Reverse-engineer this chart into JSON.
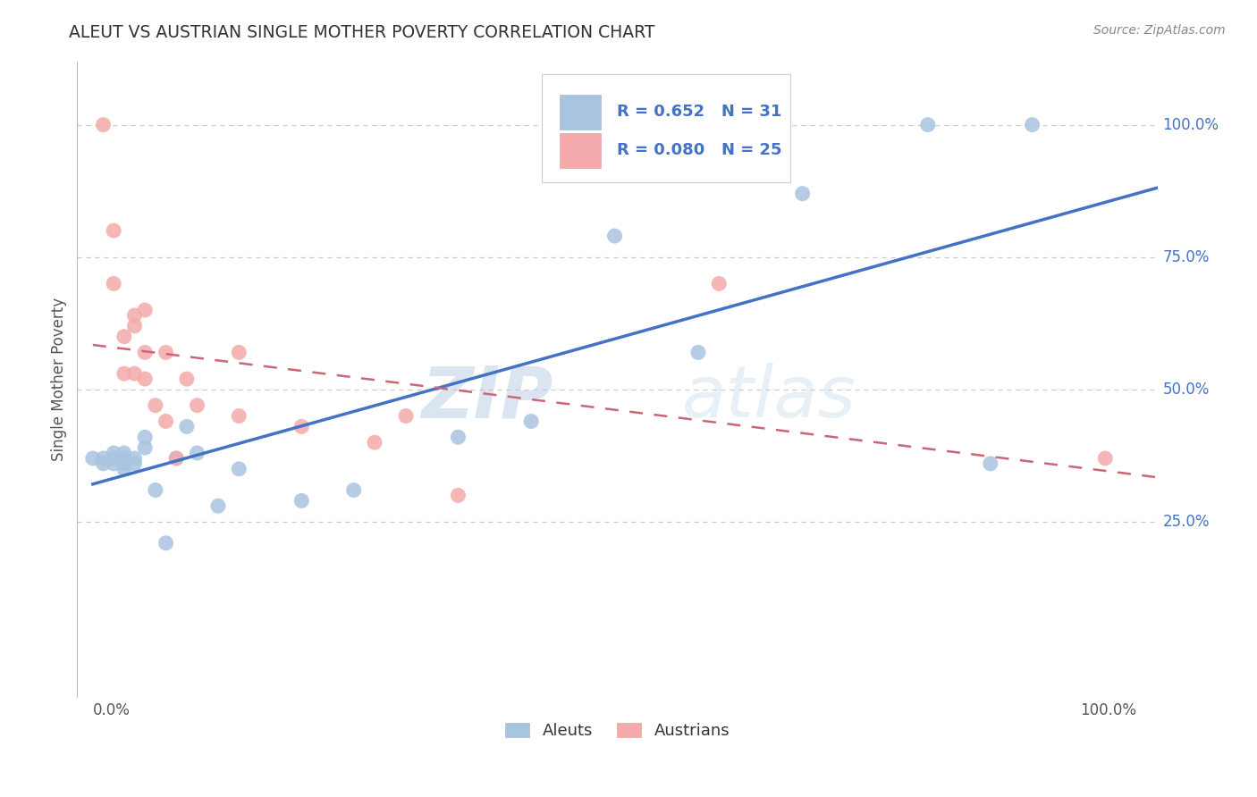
{
  "title": "ALEUT VS AUSTRIAN SINGLE MOTHER POVERTY CORRELATION CHART",
  "source": "Source: ZipAtlas.com",
  "ylabel": "Single Mother Poverty",
  "aleut_R": 0.652,
  "aleut_N": 31,
  "austrian_R": 0.08,
  "austrian_N": 25,
  "aleut_color": "#A8C4E0",
  "austrian_color": "#F4AAAA",
  "aleut_line_color": "#4472C4",
  "austrian_line_color": "#CC6677",
  "background_color": "#FFFFFF",
  "grid_color": "#C8C8C8",
  "title_color": "#333333",
  "watermark_zip": "ZIP",
  "watermark_atlas": "atlas",
  "ytick_labels": [
    "25.0%",
    "50.0%",
    "75.0%",
    "100.0%"
  ],
  "ytick_values": [
    0.25,
    0.5,
    0.75,
    1.0
  ],
  "aleut_x": [
    0.0,
    0.01,
    0.01,
    0.02,
    0.02,
    0.02,
    0.03,
    0.03,
    0.03,
    0.03,
    0.04,
    0.04,
    0.05,
    0.05,
    0.06,
    0.07,
    0.08,
    0.09,
    0.1,
    0.12,
    0.14,
    0.2,
    0.25,
    0.35,
    0.42,
    0.5,
    0.58,
    0.68,
    0.8,
    0.86,
    0.9
  ],
  "aleut_y": [
    0.37,
    0.36,
    0.37,
    0.36,
    0.37,
    0.38,
    0.35,
    0.36,
    0.37,
    0.38,
    0.36,
    0.37,
    0.39,
    0.41,
    0.31,
    0.21,
    0.37,
    0.43,
    0.38,
    0.28,
    0.35,
    0.29,
    0.31,
    0.41,
    0.44,
    0.79,
    0.57,
    0.87,
    1.0,
    0.36,
    1.0
  ],
  "austrian_x": [
    0.01,
    0.02,
    0.02,
    0.03,
    0.03,
    0.04,
    0.04,
    0.04,
    0.05,
    0.05,
    0.05,
    0.06,
    0.07,
    0.07,
    0.08,
    0.09,
    0.1,
    0.14,
    0.14,
    0.2,
    0.27,
    0.3,
    0.35,
    0.6,
    0.97
  ],
  "austrian_y": [
    1.0,
    0.8,
    0.7,
    0.53,
    0.6,
    0.62,
    0.53,
    0.64,
    0.52,
    0.57,
    0.65,
    0.47,
    0.44,
    0.57,
    0.37,
    0.52,
    0.47,
    0.45,
    0.57,
    0.43,
    0.4,
    0.45,
    0.3,
    0.7,
    0.37
  ],
  "figsize": [
    14.06,
    8.92
  ],
  "dpi": 100
}
